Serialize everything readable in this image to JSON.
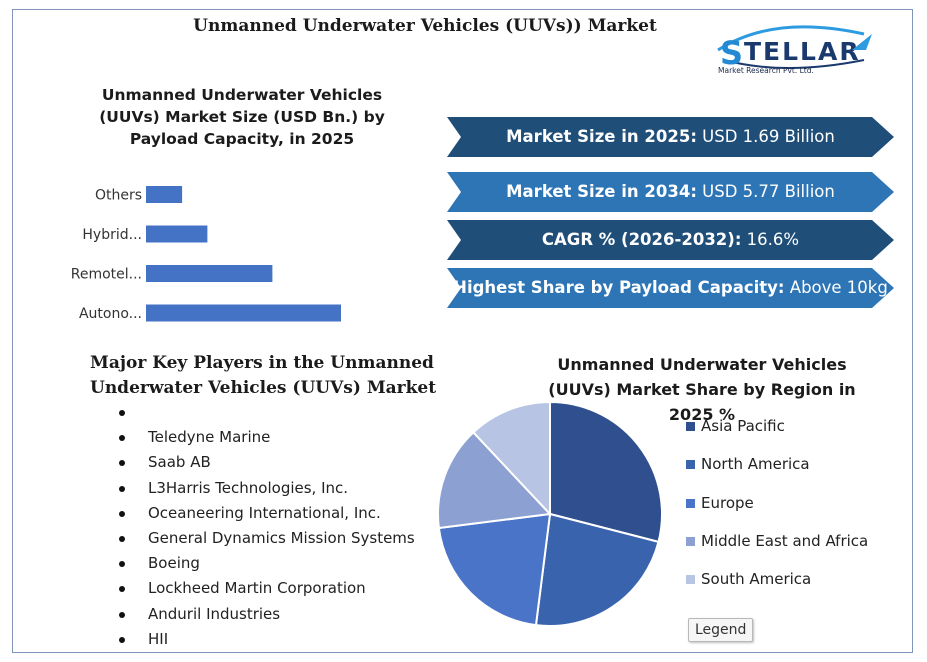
{
  "title": "Unmanned Underwater Vehicles (UUVs)) Market",
  "logo": {
    "brand": "STELLAR",
    "tagline": "Market Research Pvt. Ltd."
  },
  "bar_chart_title": "Unmanned Underwater Vehicles (UUVs) Market Size (USD Bn.) by Payload Capacity, in 2025",
  "stats": [
    {
      "label": "Market Size in 2025:",
      "value": "USD 1.69 Billion",
      "color": "#1f4e79"
    },
    {
      "label": "Market Size in 2034:",
      "value": "USD 5.77 Billion",
      "color": "#2e75b6"
    },
    {
      "label": "CAGR % (2026-2032):",
      "value": "16.6%",
      "color": "#1f4e79"
    },
    {
      "label": "Highest Share by Payload Capacity:",
      "value": "Above 10kg",
      "color": "#2e75b6"
    }
  ],
  "players_title": "Major Key Players in the Unmanned Underwater Vehicles (UUVs) Market",
  "players": [
    "",
    "Teledyne Marine",
    "Saab AB",
    "L3Harris Technologies, Inc.",
    "Oceaneering International, Inc.",
    "General Dynamics Mission Systems",
    "Boeing",
    "Lockheed Martin Corporation",
    "Anduril Industries",
    "HII"
  ],
  "pie_title": "Unmanned Underwater Vehicles (UUVs) Market Share by Region in 2025 %",
  "legend_button": "Legend",
  "chart_data": [
    {
      "type": "bar",
      "orientation": "horizontal",
      "categories": [
        "Others",
        "Hybrid...",
        "Remotel...",
        "Autono..."
      ],
      "values": [
        0.1,
        0.17,
        0.35,
        0.54
      ],
      "bar_color": "#4472c4",
      "grid": false
    },
    {
      "type": "pie",
      "labels": [
        "Asia Pacific",
        "North America",
        "Europe",
        "Middle East and Africa",
        "South America"
      ],
      "values": [
        29,
        23,
        21,
        15,
        12
      ],
      "colors": [
        "#2f4f8f",
        "#3a63ad",
        "#4a74c8",
        "#8ca0d2",
        "#b7c4e3"
      ],
      "legend": "right"
    }
  ]
}
